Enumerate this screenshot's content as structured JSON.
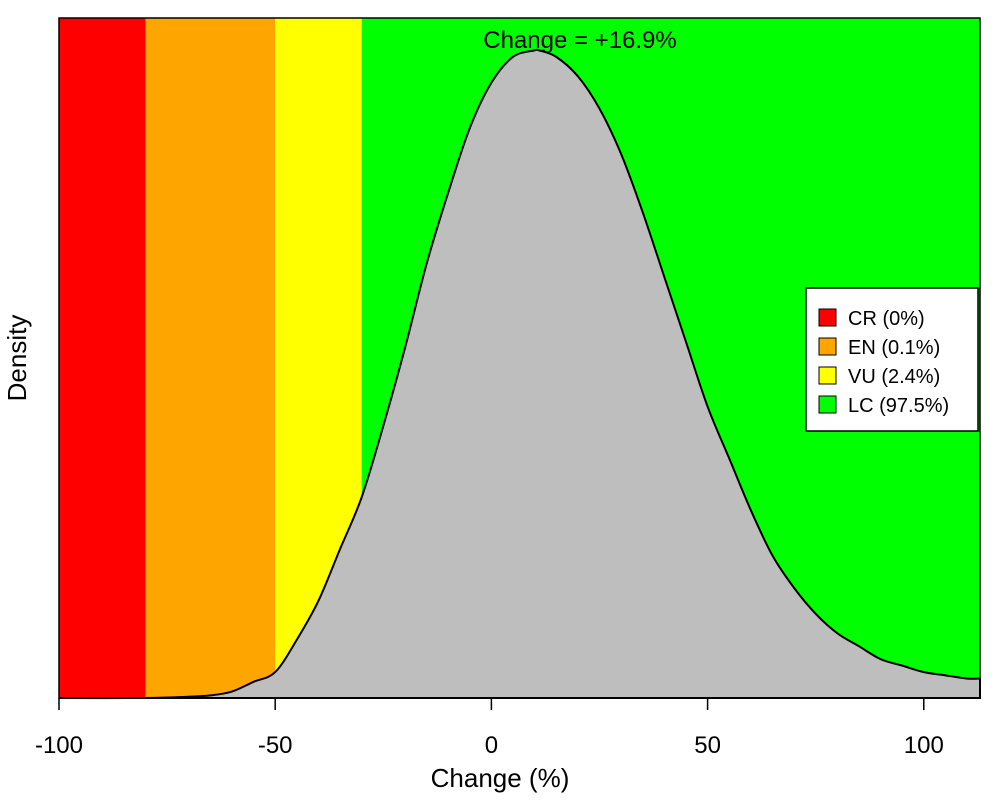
{
  "chart_data": {
    "type": "area",
    "title": "Change = +16.9%",
    "xlabel": "Change (%)",
    "ylabel": "Density",
    "xlim": [
      -100,
      113
    ],
    "ylim": [
      0,
      1.05
    ],
    "grid": false,
    "xticks": [
      -100,
      -50,
      0,
      50,
      100
    ],
    "xtick_labels": [
      "-100",
      "-50",
      "0",
      "50",
      "100"
    ],
    "bands": [
      {
        "key": "CR",
        "label": "CR (0%)",
        "from": -100,
        "to": -80,
        "color": "#FF0000"
      },
      {
        "key": "EN",
        "label": "EN (0.1%)",
        "from": -80,
        "to": -50,
        "color": "#FFA500"
      },
      {
        "key": "VU",
        "label": "VU (2.4%)",
        "from": -50,
        "to": -30,
        "color": "#FFFF00"
      },
      {
        "key": "LC",
        "label": "LC (97.5%)",
        "from": -30,
        "to": 113,
        "color": "#00FF00"
      }
    ],
    "density_fill": "#BEBEBE",
    "legend_position": "right",
    "density": {
      "x": [
        -100,
        -80,
        -70,
        -65,
        -60,
        -55,
        -50,
        -45,
        -40,
        -35,
        -30,
        -25,
        -20,
        -15,
        -10,
        -5,
        0,
        5,
        10,
        11,
        15,
        20,
        25,
        30,
        35,
        40,
        45,
        50,
        55,
        60,
        65,
        70,
        75,
        80,
        85,
        90,
        95,
        100,
        105,
        110,
        113
      ],
      "y": [
        0,
        0,
        0.002,
        0.004,
        0.01,
        0.025,
        0.04,
        0.09,
        0.15,
        0.23,
        0.31,
        0.42,
        0.54,
        0.67,
        0.78,
        0.88,
        0.95,
        0.99,
        1.0,
        1.0,
        0.99,
        0.96,
        0.91,
        0.84,
        0.75,
        0.65,
        0.55,
        0.45,
        0.37,
        0.29,
        0.22,
        0.17,
        0.13,
        0.1,
        0.08,
        0.06,
        0.05,
        0.04,
        0.035,
        0.03,
        0.03
      ]
    }
  }
}
